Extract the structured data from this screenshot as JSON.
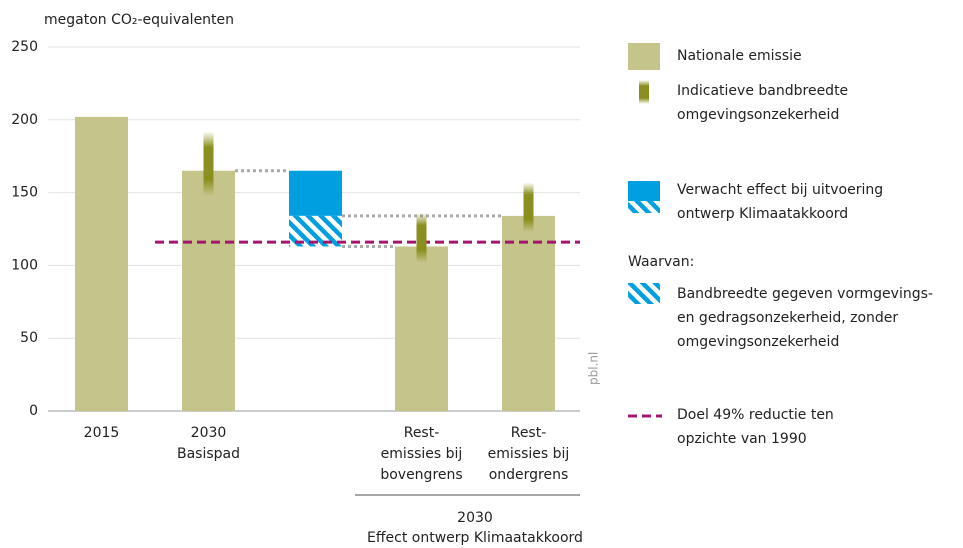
{
  "chart_data": {
    "type": "bar",
    "y_label": "megaton CO₂-equivalenten",
    "ylim": [
      0,
      250
    ],
    "yticks": [
      0,
      50,
      100,
      150,
      200,
      250
    ],
    "grid": true,
    "categories": [
      [
        "2015"
      ],
      [
        "2030",
        "Basispad"
      ],
      null,
      [
        "Rest-",
        "emissies bij",
        "bovengrens"
      ],
      [
        "Rest-",
        "emissies bij",
        "ondergrens"
      ]
    ],
    "group_label": [
      "2030",
      "Effect ontwerp Klimaatakkoord"
    ],
    "series": [
      {
        "name": [
          "Nationale emissie"
        ],
        "color": "#c5c48a",
        "values": [
          202,
          165,
          null,
          113,
          134
        ]
      }
    ],
    "ranges": {
      "name": [
        "Indicatieve bandbreedte",
        "omgevingsonzekerheid"
      ],
      "color": "#8a8f1f",
      "low": [
        null,
        148,
        null,
        102,
        123
      ],
      "high": [
        null,
        192,
        null,
        136,
        157
      ]
    },
    "effect": {
      "name": [
        "Verwacht effect bij uitvoering",
        "ontwerp Klimaatakkoord"
      ],
      "color": "#00a0e0",
      "top": 165,
      "bottom": 134,
      "band_bottom": 113,
      "band_name": [
        "Bandbreedte gegeven vormgevings-",
        "en gedragsonzekerheid, zonder",
        "omgevingsonzekerheid"
      ]
    },
    "legend_heading": "Waarvan:",
    "target": {
      "name": [
        "Doel 49% reductie ten",
        "opzichte van 1990"
      ],
      "color": "#a4166e",
      "value": 116
    },
    "source": "pbl.nl"
  }
}
